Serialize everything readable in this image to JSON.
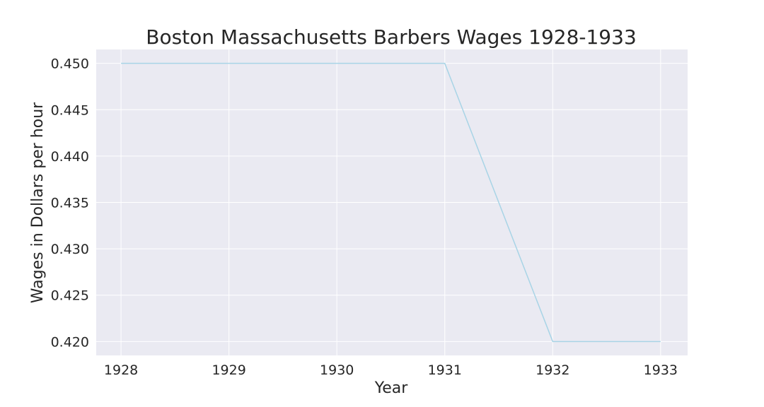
{
  "chart_data": {
    "type": "line",
    "title": "Boston Massachusetts Barbers Wages 1928-1933",
    "xlabel": "Year",
    "ylabel": "Wages in Dollars per hour",
    "x": [
      1928,
      1929,
      1930,
      1931,
      1932,
      1933
    ],
    "series": [
      {
        "values": [
          0.45,
          0.45,
          0.45,
          0.45,
          0.42,
          0.42
        ],
        "color": "#a8d4e6"
      }
    ],
    "xticks": [
      "1928",
      "1929",
      "1930",
      "1931",
      "1932",
      "1933"
    ],
    "yticks": [
      "0.420",
      "0.425",
      "0.430",
      "0.435",
      "0.440",
      "0.445",
      "0.450"
    ],
    "xlim": [
      1927.77,
      1933.25
    ],
    "ylim": [
      0.4185,
      0.4515
    ],
    "grid": true,
    "legend": "none",
    "colors": {
      "plot_background": "#eaeaf2",
      "grid": "#ffffff",
      "text": "#262626"
    }
  }
}
